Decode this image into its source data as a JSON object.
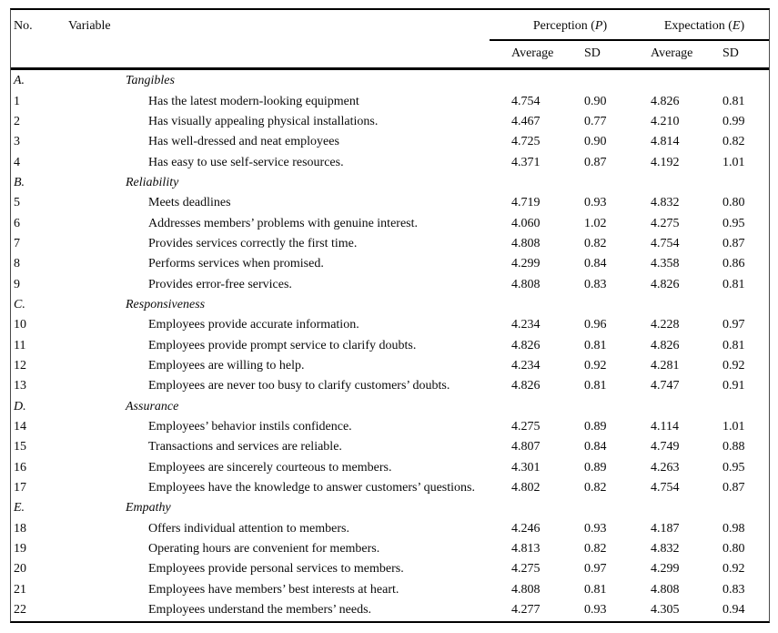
{
  "header": {
    "no": "No.",
    "variable": "Variable",
    "perception": {
      "pre": "Perception (",
      "sym": "P",
      "post": ")"
    },
    "expectation": {
      "pre": "Expectation (",
      "sym": "E",
      "post": ")"
    },
    "sub": {
      "average": "Average",
      "sd": "SD"
    }
  },
  "sections": [
    {
      "letter": "A.",
      "name": "Tangibles",
      "items": [
        {
          "no": "1",
          "text": "Has the latest modern-looking equipment",
          "p_avg": "4.754",
          "p_sd": "0.90",
          "e_avg": "4.826",
          "e_sd": "0.81"
        },
        {
          "no": "2",
          "text": "Has visually appealing physical installations.",
          "p_avg": "4.467",
          "p_sd": "0.77",
          "e_avg": "4.210",
          "e_sd": "0.99"
        },
        {
          "no": "3",
          "text": "Has well-dressed and neat employees",
          "p_avg": "4.725",
          "p_sd": "0.90",
          "e_avg": "4.814",
          "e_sd": "0.82"
        },
        {
          "no": "4",
          "text": "Has easy to use self-service resources.",
          "p_avg": "4.371",
          "p_sd": "0.87",
          "e_avg": "4.192",
          "e_sd": "1.01"
        }
      ]
    },
    {
      "letter": "B.",
      "name": "Reliability",
      "items": [
        {
          "no": "5",
          "text": "Meets deadlines",
          "p_avg": "4.719",
          "p_sd": "0.93",
          "e_avg": "4.832",
          "e_sd": "0.80"
        },
        {
          "no": "6",
          "text": "Addresses members’ problems with genuine interest.",
          "p_avg": "4.060",
          "p_sd": "1.02",
          "e_avg": "4.275",
          "e_sd": "0.95"
        },
        {
          "no": "7",
          "text": "Provides services correctly the first time.",
          "p_avg": "4.808",
          "p_sd": "0.82",
          "e_avg": "4.754",
          "e_sd": "0.87"
        },
        {
          "no": "8",
          "text": "Performs services when promised.",
          "p_avg": "4.299",
          "p_sd": "0.84",
          "e_avg": "4.358",
          "e_sd": "0.86"
        },
        {
          "no": "9",
          "text": "Provides error-free services.",
          "p_avg": "4.808",
          "p_sd": "0.83",
          "e_avg": "4.826",
          "e_sd": "0.81"
        }
      ]
    },
    {
      "letter": "C.",
      "name": "Responsiveness",
      "items": [
        {
          "no": "10",
          "text": "Employees provide accurate information.",
          "p_avg": "4.234",
          "p_sd": "0.96",
          "e_avg": "4.228",
          "e_sd": "0.97"
        },
        {
          "no": "11",
          "text": "Employees provide prompt service to clarify doubts.",
          "p_avg": "4.826",
          "p_sd": "0.81",
          "e_avg": "4.826",
          "e_sd": "0.81"
        },
        {
          "no": "12",
          "text": "Employees are willing to help.",
          "p_avg": "4.234",
          "p_sd": "0.92",
          "e_avg": "4.281",
          "e_sd": "0.92"
        },
        {
          "no": "13",
          "text": "Employees are never too busy to clarify customers’ doubts.",
          "p_avg": "4.826",
          "p_sd": "0.81",
          "e_avg": "4.747",
          "e_sd": "0.91"
        }
      ]
    },
    {
      "letter": "D.",
      "name": "Assurance",
      "items": [
        {
          "no": "14",
          "text": "Employees’ behavior instils confidence.",
          "p_avg": "4.275",
          "p_sd": "0.89",
          "e_avg": "4.114",
          "e_sd": "1.01"
        },
        {
          "no": "15",
          "text": "Transactions and services are reliable.",
          "p_avg": "4.807",
          "p_sd": "0.84",
          "e_avg": "4.749",
          "e_sd": "0.88"
        },
        {
          "no": "16",
          "text": "Employees are sincerely courteous to members.",
          "p_avg": "4.301",
          "p_sd": "0.89",
          "e_avg": "4.263",
          "e_sd": "0.95"
        },
        {
          "no": "17",
          "text": "Employees have the knowledge to answer customers’ questions.",
          "p_avg": "4.802",
          "p_sd": "0.82",
          "e_avg": "4.754",
          "e_sd": "0.87"
        }
      ]
    },
    {
      "letter": "E.",
      "name": "Empathy",
      "items": [
        {
          "no": "18",
          "text": "Offers individual attention to members.",
          "p_avg": "4.246",
          "p_sd": "0.93",
          "e_avg": "4.187",
          "e_sd": "0.98"
        },
        {
          "no": "19",
          "text": "Operating hours are convenient for members.",
          "p_avg": "4.813",
          "p_sd": "0.82",
          "e_avg": "4.832",
          "e_sd": "0.80"
        },
        {
          "no": "20",
          "text": "Employees provide personal services to members.",
          "p_avg": "4.275",
          "p_sd": "0.97",
          "e_avg": "4.299",
          "e_sd": "0.92"
        },
        {
          "no": "21",
          "text": "Employees have members’ best interests at heart.",
          "p_avg": "4.808",
          "p_sd": "0.81",
          "e_avg": "4.808",
          "e_sd": "0.83"
        },
        {
          "no": "22",
          "text": "Employees understand the members’ needs.",
          "p_avg": "4.277",
          "p_sd": "0.93",
          "e_avg": "4.305",
          "e_sd": "0.94"
        }
      ]
    }
  ]
}
